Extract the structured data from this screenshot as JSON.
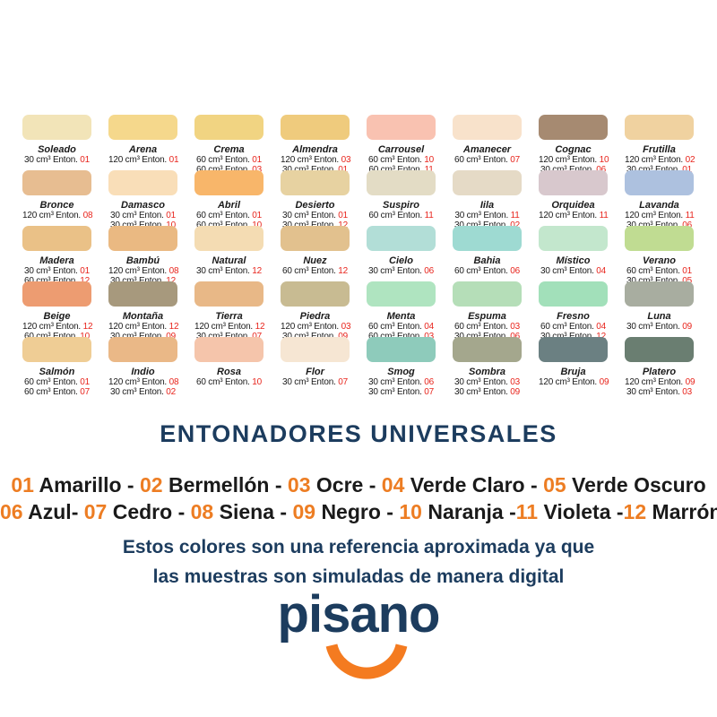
{
  "palette": {
    "navy": "#1c3c5e",
    "formula_number_red": "#e8251d",
    "tinter_number_orange": "#ed7d23",
    "logo_orange": "#f47b20"
  },
  "grid": {
    "rows": [
      [
        {
          "name": "Soleado",
          "color": "#f2e4b8",
          "formulas": [
            {
              "qty": "30 cm³ Enton.",
              "num": "01"
            }
          ]
        },
        {
          "name": "Arena",
          "color": "#f5d88c",
          "formulas": [
            {
              "qty": "120 cm³ Enton.",
              "num": "01"
            }
          ]
        },
        {
          "name": "Crema",
          "color": "#f1d482",
          "formulas": [
            {
              "qty": "60 cm³ Enton.",
              "num": "01"
            },
            {
              "qty": "60 cm³ Enton.",
              "num": "03"
            }
          ]
        },
        {
          "name": "Almendra",
          "color": "#efcb7d",
          "formulas": [
            {
              "qty": "120 cm³ Enton.",
              "num": "03"
            },
            {
              "qty": "30 cm³ Enton.",
              "num": "01"
            }
          ]
        },
        {
          "name": "Carrousel",
          "color": "#f9c2b1",
          "formulas": [
            {
              "qty": "60 cm³ Enton.",
              "num": "10"
            },
            {
              "qty": "60 cm³ Enton.",
              "num": "11"
            }
          ]
        },
        {
          "name": "Amanecer",
          "color": "#f8e2cb",
          "formulas": [
            {
              "qty": "60 cm³ Enton.",
              "num": "07"
            }
          ]
        },
        {
          "name": "Cognac",
          "color": "#a68a71",
          "formulas": [
            {
              "qty": "120 cm³ Enton.",
              "num": "10"
            },
            {
              "qty": "30 cm³ Enton.",
              "num": "06"
            }
          ]
        },
        {
          "name": "Frutilla",
          "color": "#f0d2a0",
          "formulas": [
            {
              "qty": "120 cm³ Enton.",
              "num": "02"
            },
            {
              "qty": "30 cm³ Enton.",
              "num": "01"
            }
          ]
        }
      ],
      [
        {
          "name": "Bronce",
          "color": "#e7bd91",
          "formulas": [
            {
              "qty": "120 cm³ Enton.",
              "num": "08"
            }
          ]
        },
        {
          "name": "Damasco",
          "color": "#f9deb8",
          "formulas": [
            {
              "qty": "30 cm³ Enton.",
              "num": "01"
            },
            {
              "qty": "30 cm³ Enton.",
              "num": "10"
            }
          ]
        },
        {
          "name": "Abril",
          "color": "#f8b66a",
          "formulas": [
            {
              "qty": "60 cm³ Enton.",
              "num": "01"
            },
            {
              "qty": "60 cm³ Enton.",
              "num": "10"
            }
          ]
        },
        {
          "name": "Desierto",
          "color": "#e7d2a1",
          "formulas": [
            {
              "qty": "30 cm³ Enton.",
              "num": "01"
            },
            {
              "qty": "30 cm³ Enton.",
              "num": "12"
            }
          ]
        },
        {
          "name": "Suspiro",
          "color": "#e3dcc5",
          "formulas": [
            {
              "qty": "60 cm³ Enton.",
              "num": "11"
            }
          ]
        },
        {
          "name": "Iila",
          "color": "#e5dac6",
          "formulas": [
            {
              "qty": "30 cm³ Enton.",
              "num": "11"
            },
            {
              "qty": "30 cm³ Enton.",
              "num": "02"
            }
          ]
        },
        {
          "name": "Orquidea",
          "color": "#d8c8cd",
          "formulas": [
            {
              "qty": "120 cm³ Enton.",
              "num": "11"
            }
          ]
        },
        {
          "name": "Lavanda",
          "color": "#adc1df",
          "formulas": [
            {
              "qty": "120 cm³ Enton.",
              "num": "11"
            },
            {
              "qty": "30 cm³ Enton.",
              "num": "06"
            }
          ]
        }
      ],
      [
        {
          "name": "Madera",
          "color": "#eac187",
          "formulas": [
            {
              "qty": "30 cm³ Enton.",
              "num": "01"
            },
            {
              "qty": "60 cm³ Enton.",
              "num": "12"
            }
          ]
        },
        {
          "name": "Bambú",
          "color": "#eab982",
          "formulas": [
            {
              "qty": "120 cm³ Enton.",
              "num": "08"
            },
            {
              "qty": "30 cm³ Enton.",
              "num": "12"
            }
          ]
        },
        {
          "name": "Natural",
          "color": "#f4dcb3",
          "formulas": [
            {
              "qty": "30 cm³ Enton.",
              "num": "12"
            }
          ]
        },
        {
          "name": "Nuez",
          "color": "#e2c18e",
          "formulas": [
            {
              "qty": "60 cm³ Enton.",
              "num": "12"
            }
          ]
        },
        {
          "name": "Cielo",
          "color": "#b2ded7",
          "formulas": [
            {
              "qty": "30 cm³ Enton.",
              "num": "06"
            }
          ]
        },
        {
          "name": "Bahia",
          "color": "#9edad2",
          "formulas": [
            {
              "qty": "60 cm³ Enton.",
              "num": "06"
            }
          ]
        },
        {
          "name": "Místico",
          "color": "#c3e7cd",
          "formulas": [
            {
              "qty": "30 cm³ Enton.",
              "num": "04"
            }
          ]
        },
        {
          "name": "Verano",
          "color": "#c0dc92",
          "formulas": [
            {
              "qty": "60 cm³ Enton.",
              "num": "01"
            },
            {
              "qty": "30 cm³ Enton.",
              "num": "05"
            }
          ]
        }
      ],
      [
        {
          "name": "Beige",
          "color": "#ed9c71",
          "formulas": [
            {
              "qty": "120 cm³ Enton.",
              "num": "12"
            },
            {
              "qty": "60 cm³ Enton.",
              "num": "10"
            }
          ]
        },
        {
          "name": "Montaña",
          "color": "#a7997d",
          "formulas": [
            {
              "qty": "120 cm³ Enton.",
              "num": "12"
            },
            {
              "qty": "30 cm³ Enton.",
              "num": "09"
            }
          ]
        },
        {
          "name": "Tierra",
          "color": "#e8b887",
          "formulas": [
            {
              "qty": "120 cm³ Enton.",
              "num": "12"
            },
            {
              "qty": "30 cm³ Enton.",
              "num": "07"
            }
          ]
        },
        {
          "name": "Piedra",
          "color": "#c8bb92",
          "formulas": [
            {
              "qty": "120 cm³ Enton.",
              "num": "03"
            },
            {
              "qty": "30 cm³ Enton.",
              "num": "09"
            }
          ]
        },
        {
          "name": "Menta",
          "color": "#afe4c0",
          "formulas": [
            {
              "qty": "60 cm³ Enton.",
              "num": "04"
            },
            {
              "qty": "60 cm³ Enton.",
              "num": "03"
            }
          ]
        },
        {
          "name": "Espuma",
          "color": "#b5deb8",
          "formulas": [
            {
              "qty": "60 cm³ Enton.",
              "num": "03"
            },
            {
              "qty": "30 cm³ Enton.",
              "num": "06"
            }
          ]
        },
        {
          "name": "Fresno",
          "color": "#a2e0ba",
          "formulas": [
            {
              "qty": "60 cm³ Enton.",
              "num": "04"
            },
            {
              "qty": "30 cm³ Enton.",
              "num": "12"
            }
          ]
        },
        {
          "name": "Luna",
          "color": "#a8ada0",
          "formulas": [
            {
              "qty": "30 cm³ Enton.",
              "num": "09"
            }
          ]
        }
      ],
      [
        {
          "name": "Salmón",
          "color": "#efcd95",
          "formulas": [
            {
              "qty": "60 cm³ Enton.",
              "num": "01"
            },
            {
              "qty": "60 cm³ Enton.",
              "num": "07"
            }
          ]
        },
        {
          "name": "Indio",
          "color": "#eab887",
          "formulas": [
            {
              "qty": "120 cm³ Enton.",
              "num": "08"
            },
            {
              "qty": "30 cm³ Enton.",
              "num": "02"
            }
          ]
        },
        {
          "name": "Rosa",
          "color": "#f5c5ab",
          "formulas": [
            {
              "qty": "60 cm³ Enton.",
              "num": "10"
            }
          ]
        },
        {
          "name": "Flor",
          "color": "#f6e6d3",
          "formulas": [
            {
              "qty": "30 cm³ Enton.",
              "num": "07"
            }
          ]
        },
        {
          "name": "Smog",
          "color": "#8ecbbb",
          "formulas": [
            {
              "qty": "30 cm³ Enton.",
              "num": "06"
            },
            {
              "qty": "30 cm³ Enton.",
              "num": "07"
            }
          ]
        },
        {
          "name": "Sombra",
          "color": "#a4a78d",
          "formulas": [
            {
              "qty": "30 cm³ Enton.",
              "num": "03"
            },
            {
              "qty": "30 cm³ Enton.",
              "num": "09"
            }
          ]
        },
        {
          "name": "Bruja",
          "color": "#6b8082",
          "formulas": [
            {
              "qty": "120 cm³ Enton.",
              "num": "09"
            }
          ]
        },
        {
          "name": "Platero",
          "color": "#6a7e71",
          "formulas": [
            {
              "qty": "120 cm³ Enton.",
              "num": "09"
            },
            {
              "qty": "30 cm³ Enton.",
              "num": "03"
            }
          ]
        }
      ]
    ]
  },
  "title": "ENTONADORES UNIVERSALES",
  "tinters": {
    "line1": [
      {
        "num": "01",
        "name": "Amarillo",
        "sep": " - "
      },
      {
        "num": "02",
        "name": "Bermellón",
        "sep": " - "
      },
      {
        "num": "03",
        "name": "Ocre",
        "sep": " - "
      },
      {
        "num": "04",
        "name": "Verde Claro",
        "sep": " - "
      },
      {
        "num": "05",
        "name": "Verde Oscuro",
        "sep": ""
      }
    ],
    "line2": [
      {
        "num": "06",
        "name": "Azul-",
        "sep": " "
      },
      {
        "num": "07",
        "name": "Cedro",
        "sep": " - "
      },
      {
        "num": "08",
        "name": "Siena",
        "sep": " - "
      },
      {
        "num": "09",
        "name": "Negro",
        "sep": " - "
      },
      {
        "num": "10",
        "name": "Naranja",
        "sep": " -"
      },
      {
        "num": "11",
        "name": "Violeta",
        "sep": " -"
      },
      {
        "num": "12",
        "name": "Marrón",
        "sep": ""
      }
    ]
  },
  "disclaimer": {
    "line1": "Estos colores son una referencia aproximada ya que",
    "line2": "las muestras son simuladas de manera digital"
  },
  "logo": {
    "text": "pisano"
  }
}
